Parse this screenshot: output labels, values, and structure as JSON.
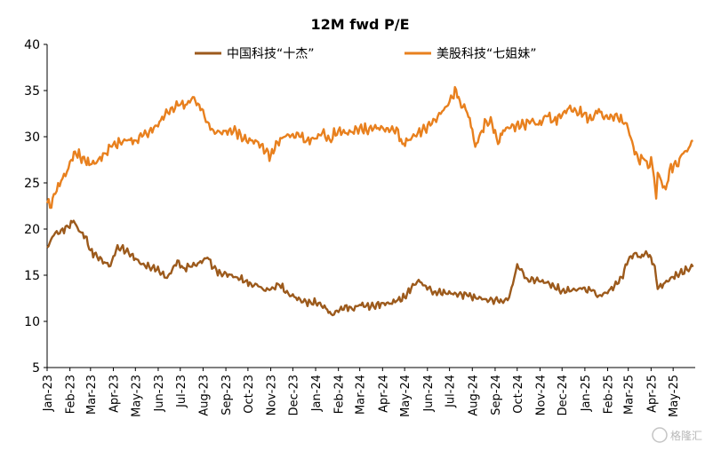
{
  "chart_data": {
    "type": "line",
    "title": "12M fwd P/E",
    "xlabel": "",
    "ylabel": "",
    "ylim": [
      5,
      40
    ],
    "yticks": [
      5,
      10,
      15,
      20,
      25,
      30,
      35,
      40
    ],
    "x_range": [
      "2023-01-01",
      "2025-05-31"
    ],
    "xtick_labels": [
      "Jan-23",
      "Feb-23",
      "Mar-23",
      "Apr-23",
      "May-23",
      "Jun-23",
      "Jul-23",
      "Aug-23",
      "Sep-23",
      "Oct-23",
      "Nov-23",
      "Dec-23",
      "Jan-24",
      "Feb-24",
      "Mar-24",
      "Apr-24",
      "May-24",
      "Jun-24",
      "Jul-24",
      "Aug-24",
      "Sep-24",
      "Oct-24",
      "Nov-24",
      "Dec-24",
      "Jan-25",
      "Feb-25",
      "Mar-25",
      "Apr-25",
      "May-25"
    ],
    "grid": false,
    "legend_position": "top",
    "series": [
      {
        "name": "中国科技“十杰”",
        "color": "#9c5a1c",
        "points": [
          [
            "2023-01-01",
            18.0
          ],
          [
            "2023-01-10",
            19.3
          ],
          [
            "2023-01-20",
            19.9
          ],
          [
            "2023-01-30",
            20.2
          ],
          [
            "2023-02-06",
            20.9
          ],
          [
            "2023-02-13",
            19.8
          ],
          [
            "2023-02-22",
            19.2
          ],
          [
            "2023-03-01",
            17.7
          ],
          [
            "2023-03-10",
            17.0
          ],
          [
            "2023-03-20",
            16.4
          ],
          [
            "2023-03-28",
            16.0
          ],
          [
            "2023-04-05",
            17.8
          ],
          [
            "2023-04-12",
            18.0
          ],
          [
            "2023-04-22",
            17.4
          ],
          [
            "2023-05-01",
            16.8
          ],
          [
            "2023-05-10",
            16.2
          ],
          [
            "2023-05-20",
            15.9
          ],
          [
            "2023-05-30",
            15.6
          ],
          [
            "2023-06-06",
            15.2
          ],
          [
            "2023-06-13",
            14.7
          ],
          [
            "2023-06-20",
            15.6
          ],
          [
            "2023-06-27",
            16.6
          ],
          [
            "2023-07-05",
            15.8
          ],
          [
            "2023-07-15",
            15.9
          ],
          [
            "2023-07-25",
            16.3
          ],
          [
            "2023-08-01",
            16.6
          ],
          [
            "2023-08-07",
            16.9
          ],
          [
            "2023-08-15",
            15.8
          ],
          [
            "2023-08-25",
            15.2
          ],
          [
            "2023-09-05",
            15.1
          ],
          [
            "2023-09-15",
            14.8
          ],
          [
            "2023-09-28",
            14.4
          ],
          [
            "2023-10-05",
            14.1
          ],
          [
            "2023-10-15",
            13.8
          ],
          [
            "2023-10-25",
            13.3
          ],
          [
            "2023-11-03",
            13.7
          ],
          [
            "2023-11-13",
            13.9
          ],
          [
            "2023-11-25",
            13.0
          ],
          [
            "2023-12-05",
            12.6
          ],
          [
            "2023-12-15",
            12.1
          ],
          [
            "2023-12-25",
            12.1
          ],
          [
            "2024-01-05",
            12.0
          ],
          [
            "2024-01-15",
            11.4
          ],
          [
            "2024-01-22",
            10.8
          ],
          [
            "2024-02-01",
            11.0
          ],
          [
            "2024-02-10",
            11.7
          ],
          [
            "2024-02-20",
            11.3
          ],
          [
            "2024-03-01",
            11.8
          ],
          [
            "2024-03-10",
            11.7
          ],
          [
            "2024-03-20",
            11.6
          ],
          [
            "2024-04-01",
            12.0
          ],
          [
            "2024-04-10",
            11.9
          ],
          [
            "2024-04-20",
            12.2
          ],
          [
            "2024-05-01",
            12.6
          ],
          [
            "2024-05-10",
            13.6
          ],
          [
            "2024-05-20",
            14.5
          ],
          [
            "2024-05-28",
            13.9
          ],
          [
            "2024-06-10",
            13.2
          ],
          [
            "2024-06-25",
            13.1
          ],
          [
            "2024-07-10",
            13.0
          ],
          [
            "2024-07-25",
            12.8
          ],
          [
            "2024-08-05",
            12.6
          ],
          [
            "2024-08-20",
            12.4
          ],
          [
            "2024-09-05",
            12.2
          ],
          [
            "2024-09-12",
            12.0
          ],
          [
            "2024-09-20",
            12.6
          ],
          [
            "2024-09-25",
            14.0
          ],
          [
            "2024-10-01",
            16.2
          ],
          [
            "2024-10-05",
            15.6
          ],
          [
            "2024-10-15",
            14.6
          ],
          [
            "2024-10-30",
            14.4
          ],
          [
            "2024-11-10",
            14.2
          ],
          [
            "2024-11-20",
            13.8
          ],
          [
            "2024-12-01",
            13.3
          ],
          [
            "2024-12-15",
            13.4
          ],
          [
            "2024-12-28",
            13.5
          ],
          [
            "2025-01-10",
            13.3
          ],
          [
            "2025-01-20",
            12.8
          ],
          [
            "2025-01-30",
            13.1
          ],
          [
            "2025-02-10",
            13.8
          ],
          [
            "2025-02-20",
            14.8
          ],
          [
            "2025-03-01",
            16.6
          ],
          [
            "2025-03-10",
            17.4
          ],
          [
            "2025-03-18",
            16.9
          ],
          [
            "2025-03-25",
            17.6
          ],
          [
            "2025-04-01",
            16.9
          ],
          [
            "2025-04-06",
            16.0
          ],
          [
            "2025-04-10",
            13.5
          ],
          [
            "2025-04-20",
            14.2
          ],
          [
            "2025-05-01",
            14.8
          ],
          [
            "2025-05-10",
            15.2
          ],
          [
            "2025-05-20",
            15.6
          ],
          [
            "2025-05-28",
            15.9
          ]
        ]
      },
      {
        "name": "美股科技“七姐妹”",
        "color": "#e8801e",
        "points": [
          [
            "2023-01-01",
            22.8
          ],
          [
            "2023-01-05",
            22.3
          ],
          [
            "2023-01-12",
            23.8
          ],
          [
            "2023-01-20",
            25.2
          ],
          [
            "2023-01-28",
            26.2
          ],
          [
            "2023-02-03",
            27.5
          ],
          [
            "2023-02-08",
            28.4
          ],
          [
            "2023-02-15",
            27.8
          ],
          [
            "2023-02-22",
            27.3
          ],
          [
            "2023-03-01",
            27.0
          ],
          [
            "2023-03-10",
            27.3
          ],
          [
            "2023-03-20",
            28.2
          ],
          [
            "2023-03-30",
            28.9
          ],
          [
            "2023-04-10",
            29.4
          ],
          [
            "2023-04-20",
            29.6
          ],
          [
            "2023-05-01",
            29.6
          ],
          [
            "2023-05-10",
            30.0
          ],
          [
            "2023-05-20",
            30.6
          ],
          [
            "2023-05-30",
            31.2
          ],
          [
            "2023-06-10",
            32.3
          ],
          [
            "2023-06-20",
            33.2
          ],
          [
            "2023-06-30",
            33.4
          ],
          [
            "2023-07-10",
            33.5
          ],
          [
            "2023-07-18",
            34.3
          ],
          [
            "2023-07-25",
            33.6
          ],
          [
            "2023-08-01",
            32.9
          ],
          [
            "2023-08-07",
            31.6
          ],
          [
            "2023-08-15",
            30.7
          ],
          [
            "2023-08-25",
            30.4
          ],
          [
            "2023-09-05",
            30.7
          ],
          [
            "2023-09-15",
            30.6
          ],
          [
            "2023-09-25",
            29.7
          ],
          [
            "2023-10-05",
            29.6
          ],
          [
            "2023-10-15",
            29.4
          ],
          [
            "2023-10-25",
            28.4
          ],
          [
            "2023-11-01",
            28.0
          ],
          [
            "2023-11-10",
            29.4
          ],
          [
            "2023-11-20",
            30.0
          ],
          [
            "2023-12-01",
            30.3
          ],
          [
            "2023-12-10",
            30.0
          ],
          [
            "2023-12-20",
            29.6
          ],
          [
            "2024-01-01",
            29.8
          ],
          [
            "2024-01-10",
            30.4
          ],
          [
            "2024-01-20",
            29.7
          ],
          [
            "2024-02-01",
            30.7
          ],
          [
            "2024-02-10",
            30.4
          ],
          [
            "2024-02-20",
            30.5
          ],
          [
            "2024-03-01",
            31.0
          ],
          [
            "2024-03-10",
            30.7
          ],
          [
            "2024-03-20",
            30.9
          ],
          [
            "2024-04-01",
            31.0
          ],
          [
            "2024-04-10",
            30.5
          ],
          [
            "2024-04-20",
            31.0
          ],
          [
            "2024-04-28",
            29.2
          ],
          [
            "2024-05-05",
            29.6
          ],
          [
            "2024-05-15",
            30.1
          ],
          [
            "2024-05-25",
            30.7
          ],
          [
            "2024-06-05",
            31.2
          ],
          [
            "2024-06-15",
            32.2
          ],
          [
            "2024-06-25",
            33.2
          ],
          [
            "2024-07-05",
            34.2
          ],
          [
            "2024-07-10",
            35.1
          ],
          [
            "2024-07-15",
            33.9
          ],
          [
            "2024-07-25",
            32.6
          ],
          [
            "2024-08-01",
            30.8
          ],
          [
            "2024-08-05",
            28.9
          ],
          [
            "2024-08-12",
            30.4
          ],
          [
            "2024-08-20",
            31.7
          ],
          [
            "2024-08-28",
            31.4
          ],
          [
            "2024-09-05",
            29.2
          ],
          [
            "2024-09-12",
            30.7
          ],
          [
            "2024-09-20",
            30.9
          ],
          [
            "2024-09-30",
            31.3
          ],
          [
            "2024-10-10",
            31.3
          ],
          [
            "2024-10-20",
            31.7
          ],
          [
            "2024-10-30",
            31.3
          ],
          [
            "2024-11-10",
            32.2
          ],
          [
            "2024-11-20",
            31.8
          ],
          [
            "2024-12-01",
            32.3
          ],
          [
            "2024-12-10",
            33.1
          ],
          [
            "2024-12-20",
            32.8
          ],
          [
            "2024-12-30",
            32.4
          ],
          [
            "2025-01-10",
            31.8
          ],
          [
            "2025-01-20",
            33.0
          ],
          [
            "2025-01-27",
            31.9
          ],
          [
            "2025-02-05",
            32.4
          ],
          [
            "2025-02-15",
            32.0
          ],
          [
            "2025-02-25",
            31.5
          ],
          [
            "2025-03-01",
            30.8
          ],
          [
            "2025-03-08",
            28.9
          ],
          [
            "2025-03-15",
            27.4
          ],
          [
            "2025-03-22",
            27.6
          ],
          [
            "2025-03-28",
            26.6
          ],
          [
            "2025-04-01",
            27.8
          ],
          [
            "2025-04-05",
            25.6
          ],
          [
            "2025-04-08",
            23.3
          ],
          [
            "2025-04-10",
            26.1
          ],
          [
            "2025-04-15",
            25.2
          ],
          [
            "2025-04-21",
            24.3
          ],
          [
            "2025-04-26",
            26.4
          ],
          [
            "2025-05-02",
            27.0
          ],
          [
            "2025-05-08",
            26.8
          ],
          [
            "2025-05-13",
            28.1
          ],
          [
            "2025-05-20",
            28.4
          ],
          [
            "2025-05-28",
            29.6
          ]
        ]
      }
    ]
  },
  "watermark_text": "格隆汇"
}
